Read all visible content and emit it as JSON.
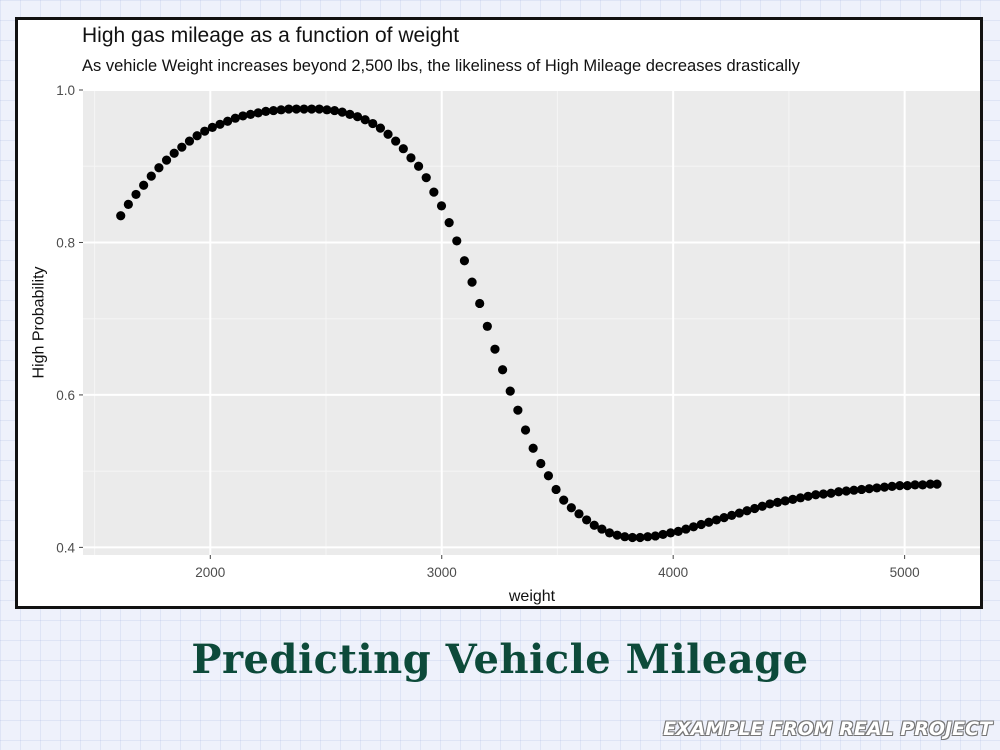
{
  "chart_data": {
    "type": "scatter",
    "title": "High gas mileage as a function of weight",
    "subtitle": "As vehicle Weight increases beyond 2,500 lbs, the likeliness of High Mileage decreases drastically",
    "xlabel": "weight",
    "ylabel": "High Probability",
    "xlim": [
      1450,
      5330
    ],
    "ylim": [
      0.39,
      1.0
    ],
    "xticks": [
      2000,
      3000,
      4000,
      5000
    ],
    "yticks": [
      0.4,
      0.6,
      0.8,
      1.0
    ],
    "xtick_labels": [
      "2000",
      "3000",
      "4000",
      "5000"
    ],
    "ytick_labels": [
      "0.4",
      "0.6",
      "0.8",
      "1.0"
    ],
    "grid": true,
    "legend": "none",
    "point_color": "#000000",
    "x": [
      1613,
      1646,
      1679,
      1712,
      1745,
      1778,
      1811,
      1844,
      1877,
      1910,
      1943,
      1976,
      2009,
      2042,
      2075,
      2108,
      2141,
      2174,
      2207,
      2240,
      2273,
      2306,
      2339,
      2372,
      2405,
      2438,
      2471,
      2504,
      2537,
      2570,
      2603,
      2636,
      2669,
      2702,
      2735,
      2768,
      2801,
      2834,
      2867,
      2900,
      2933,
      2966,
      2999,
      3032,
      3065,
      3098,
      3131,
      3164,
      3197,
      3230,
      3263,
      3296,
      3329,
      3362,
      3395,
      3428,
      3461,
      3494,
      3527,
      3560,
      3593,
      3626,
      3659,
      3692,
      3725,
      3758,
      3791,
      3824,
      3857,
      3890,
      3923,
      3956,
      3989,
      4022,
      4055,
      4088,
      4121,
      4154,
      4187,
      4220,
      4253,
      4286,
      4319,
      4352,
      4385,
      4418,
      4451,
      4484,
      4517,
      4550,
      4583,
      4616,
      4649,
      4682,
      4715,
      4748,
      4781,
      4814,
      4847,
      4880,
      4913,
      4946,
      4979,
      5012,
      5045,
      5078,
      5111,
      5140
    ],
    "y": [
      0.835,
      0.85,
      0.863,
      0.875,
      0.887,
      0.898,
      0.908,
      0.917,
      0.925,
      0.933,
      0.94,
      0.946,
      0.951,
      0.955,
      0.959,
      0.963,
      0.966,
      0.968,
      0.97,
      0.972,
      0.973,
      0.974,
      0.975,
      0.975,
      0.975,
      0.975,
      0.975,
      0.974,
      0.973,
      0.971,
      0.968,
      0.965,
      0.961,
      0.956,
      0.95,
      0.942,
      0.933,
      0.923,
      0.911,
      0.9,
      0.885,
      0.866,
      0.848,
      0.826,
      0.802,
      0.776,
      0.748,
      0.72,
      0.69,
      0.66,
      0.633,
      0.605,
      0.58,
      0.554,
      0.53,
      0.51,
      0.494,
      0.476,
      0.462,
      0.452,
      0.444,
      0.436,
      0.429,
      0.424,
      0.419,
      0.416,
      0.414,
      0.413,
      0.413,
      0.414,
      0.415,
      0.417,
      0.419,
      0.421,
      0.424,
      0.427,
      0.43,
      0.433,
      0.436,
      0.439,
      0.442,
      0.445,
      0.448,
      0.451,
      0.454,
      0.457,
      0.459,
      0.461,
      0.463,
      0.465,
      0.467,
      0.469,
      0.47,
      0.471,
      0.473,
      0.474,
      0.475,
      0.476,
      0.477,
      0.478,
      0.479,
      0.48,
      0.481,
      0.481,
      0.482,
      0.482,
      0.483,
      0.483
    ]
  },
  "caption": "Predicting Vehicle Mileage",
  "stamp": "EXAMPLE FROM REAL PROJECT"
}
